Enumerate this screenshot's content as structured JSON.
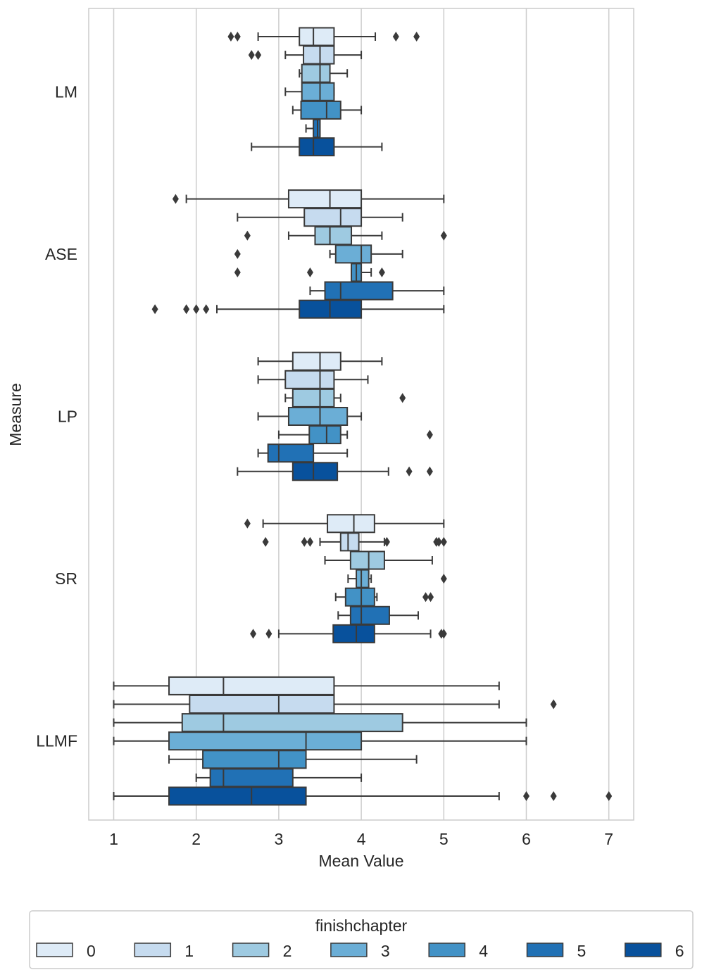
{
  "chart_data": {
    "type": "boxplot",
    "orientation": "horizontal",
    "xlabel": "Mean Value",
    "ylabel": "Measure",
    "xlim": [
      0.7,
      7.3
    ],
    "xticks": [
      1,
      2,
      3,
      4,
      5,
      6,
      7
    ],
    "grid": "vertical",
    "categories": [
      "LM",
      "ASE",
      "LP",
      "SR",
      "LLMF"
    ],
    "legend": {
      "title": "finishchapter",
      "placement": "bottom",
      "entries": [
        "0",
        "1",
        "2",
        "3",
        "4",
        "5",
        "6"
      ]
    },
    "hue_colors": [
      "#deebf7",
      "#c6dbef",
      "#9ecae1",
      "#6baed6",
      "#4292c6",
      "#2171b5",
      "#08519c"
    ],
    "boxes": [
      {
        "category": "LM",
        "hue": "0",
        "whislo": 2.75,
        "q1": 3.25,
        "median": 3.42,
        "q3": 3.67,
        "whishi": 4.17,
        "fliers": [
          2.42,
          2.5,
          4.42,
          4.67
        ]
      },
      {
        "category": "LM",
        "hue": "1",
        "whislo": 3.08,
        "q1": 3.3,
        "median": 3.5,
        "q3": 3.67,
        "whishi": 4.0,
        "fliers": [
          2.67,
          2.75
        ]
      },
      {
        "category": "LM",
        "hue": "2",
        "whislo": 3.25,
        "q1": 3.28,
        "median": 3.5,
        "q3": 3.62,
        "whishi": 3.83,
        "fliers": []
      },
      {
        "category": "LM",
        "hue": "3",
        "whislo": 3.08,
        "q1": 3.28,
        "median": 3.5,
        "q3": 3.67,
        "whishi": 3.67,
        "fliers": []
      },
      {
        "category": "LM",
        "hue": "4",
        "whislo": 3.17,
        "q1": 3.27,
        "median": 3.58,
        "q3": 3.75,
        "whishi": 4.0,
        "fliers": []
      },
      {
        "category": "LM",
        "hue": "5",
        "whislo": 3.33,
        "q1": 3.42,
        "median": 3.47,
        "q3": 3.5,
        "whishi": 3.5,
        "fliers": []
      },
      {
        "category": "LM",
        "hue": "6",
        "whislo": 2.67,
        "q1": 3.25,
        "median": 3.42,
        "q3": 3.67,
        "whishi": 4.25,
        "fliers": []
      },
      {
        "category": "ASE",
        "hue": "0",
        "whislo": 1.88,
        "q1": 3.12,
        "median": 3.62,
        "q3": 4.0,
        "whishi": 5.0,
        "fliers": [
          1.75
        ]
      },
      {
        "category": "ASE",
        "hue": "1",
        "whislo": 2.5,
        "q1": 3.31,
        "median": 3.75,
        "q3": 4.0,
        "whishi": 4.5,
        "fliers": []
      },
      {
        "category": "ASE",
        "hue": "2",
        "whislo": 3.12,
        "q1": 3.44,
        "median": 3.62,
        "q3": 3.88,
        "whishi": 4.25,
        "fliers": [
          2.62,
          5.0
        ]
      },
      {
        "category": "ASE",
        "hue": "3",
        "whislo": 3.62,
        "q1": 3.69,
        "median": 4.0,
        "q3": 4.12,
        "whishi": 4.5,
        "fliers": [
          2.5
        ]
      },
      {
        "category": "ASE",
        "hue": "4",
        "whislo": 3.88,
        "q1": 3.88,
        "median": 3.94,
        "q3": 4.0,
        "whishi": 4.12,
        "fliers": [
          2.5,
          3.38,
          4.25
        ]
      },
      {
        "category": "ASE",
        "hue": "5",
        "whislo": 3.38,
        "q1": 3.56,
        "median": 3.75,
        "q3": 4.38,
        "whishi": 5.0,
        "fliers": []
      },
      {
        "category": "ASE",
        "hue": "6",
        "whislo": 2.25,
        "q1": 3.25,
        "median": 3.62,
        "q3": 4.0,
        "whishi": 5.0,
        "fliers": [
          1.5,
          1.88,
          2.0,
          2.12
        ]
      },
      {
        "category": "LP",
        "hue": "0",
        "whislo": 2.75,
        "q1": 3.17,
        "median": 3.5,
        "q3": 3.75,
        "whishi": 4.25,
        "fliers": []
      },
      {
        "category": "LP",
        "hue": "1",
        "whislo": 2.75,
        "q1": 3.08,
        "median": 3.5,
        "q3": 3.67,
        "whishi": 4.08,
        "fliers": []
      },
      {
        "category": "LP",
        "hue": "2",
        "whislo": 3.08,
        "q1": 3.17,
        "median": 3.5,
        "q3": 3.67,
        "whishi": 3.75,
        "fliers": [
          4.5
        ]
      },
      {
        "category": "LP",
        "hue": "3",
        "whislo": 2.75,
        "q1": 3.12,
        "median": 3.5,
        "q3": 3.83,
        "whishi": 4.0,
        "fliers": []
      },
      {
        "category": "LP",
        "hue": "4",
        "whislo": 3.0,
        "q1": 3.37,
        "median": 3.58,
        "q3": 3.75,
        "whishi": 3.83,
        "fliers": [
          4.83
        ]
      },
      {
        "category": "LP",
        "hue": "5",
        "whislo": 2.75,
        "q1": 2.87,
        "median": 3.0,
        "q3": 3.42,
        "whishi": 3.83,
        "fliers": []
      },
      {
        "category": "LP",
        "hue": "6",
        "whislo": 2.5,
        "q1": 3.17,
        "median": 3.42,
        "q3": 3.71,
        "whishi": 4.33,
        "fliers": [
          4.58,
          4.83
        ]
      },
      {
        "category": "SR",
        "hue": "0",
        "whislo": 2.81,
        "q1": 3.59,
        "median": 3.91,
        "q3": 4.16,
        "whishi": 5.0,
        "fliers": [
          2.62
        ]
      },
      {
        "category": "SR",
        "hue": "1",
        "whislo": 3.5,
        "q1": 3.75,
        "median": 3.84,
        "q3": 3.97,
        "whishi": 4.28,
        "fliers": [
          2.84,
          3.31,
          3.38,
          4.31,
          4.91,
          4.94,
          5.0
        ]
      },
      {
        "category": "SR",
        "hue": "2",
        "whislo": 3.56,
        "q1": 3.87,
        "median": 4.09,
        "q3": 4.28,
        "whishi": 4.86,
        "fliers": []
      },
      {
        "category": "SR",
        "hue": "3",
        "whislo": 3.84,
        "q1": 3.94,
        "median": 4.0,
        "q3": 4.09,
        "whishi": 4.12,
        "fliers": [
          5.0
        ]
      },
      {
        "category": "SR",
        "hue": "4",
        "whislo": 3.69,
        "q1": 3.81,
        "median": 4.0,
        "q3": 4.16,
        "whishi": 4.19,
        "fliers": [
          4.78,
          4.84
        ]
      },
      {
        "category": "SR",
        "hue": "5",
        "whislo": 3.72,
        "q1": 3.87,
        "median": 4.0,
        "q3": 4.34,
        "whishi": 4.69,
        "fliers": []
      },
      {
        "category": "SR",
        "hue": "6",
        "whislo": 3.0,
        "q1": 3.66,
        "median": 3.94,
        "q3": 4.16,
        "whishi": 4.84,
        "fliers": [
          2.69,
          2.88,
          4.97,
          5.0
        ]
      },
      {
        "category": "LLMF",
        "hue": "0",
        "whislo": 1.0,
        "q1": 1.67,
        "median": 2.33,
        "q3": 3.67,
        "whishi": 5.67,
        "fliers": []
      },
      {
        "category": "LLMF",
        "hue": "1",
        "whislo": 1.0,
        "q1": 1.92,
        "median": 3.0,
        "q3": 3.67,
        "whishi": 5.67,
        "fliers": [
          6.33
        ]
      },
      {
        "category": "LLMF",
        "hue": "2",
        "whislo": 1.0,
        "q1": 1.83,
        "median": 2.33,
        "q3": 4.5,
        "whishi": 6.0,
        "fliers": []
      },
      {
        "category": "LLMF",
        "hue": "3",
        "whislo": 1.0,
        "q1": 1.67,
        "median": 3.33,
        "q3": 4.0,
        "whishi": 6.0,
        "fliers": []
      },
      {
        "category": "LLMF",
        "hue": "4",
        "whislo": 1.67,
        "q1": 2.08,
        "median": 3.0,
        "q3": 3.33,
        "whishi": 4.67,
        "fliers": []
      },
      {
        "category": "LLMF",
        "hue": "5",
        "whislo": 2.0,
        "q1": 2.17,
        "median": 2.33,
        "q3": 3.17,
        "whishi": 4.0,
        "fliers": []
      },
      {
        "category": "LLMF",
        "hue": "6",
        "whislo": 1.0,
        "q1": 1.67,
        "median": 2.67,
        "q3": 3.33,
        "whishi": 5.67,
        "fliers": [
          6.0,
          6.33,
          7.0
        ]
      }
    ]
  }
}
